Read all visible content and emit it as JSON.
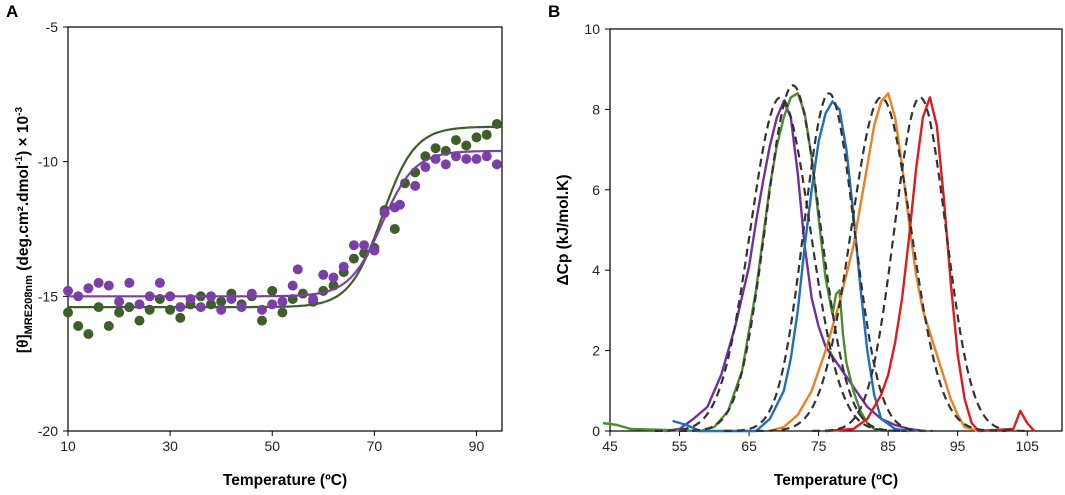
{
  "panels": {
    "a": "A",
    "b": "B"
  },
  "chart_data": [
    {
      "type": "scatter",
      "panel": "A",
      "xlabel": "Temperature (ºC)",
      "ylabel_main": "[θ]",
      "ylabel_sub": "MRE208nm",
      "ylabel_units": " (deg.cm²",
      "ylabel_units_rest": ".dmol",
      "ylabel_exp1": "-1",
      "ylabel_units_end": ") × 10",
      "ylabel_exp2": "-3",
      "xlim": [
        10,
        95
      ],
      "ylim": [
        -20,
        -5
      ],
      "xticks": [
        "10",
        "30",
        "50",
        "70",
        "90"
      ],
      "xtick_values": [
        10,
        30,
        50,
        70,
        90
      ],
      "yticks": [
        "-5",
        "-10",
        "-15",
        "-20"
      ],
      "ytick_values": [
        -5,
        -10,
        -15,
        -20
      ],
      "colors": {
        "green": "#3e5e2b",
        "purple": "#7b3fa8"
      },
      "series": [
        {
          "name": "green",
          "color": "#3e5e2b",
          "points": [
            [
              10,
              -15.6
            ],
            [
              12,
              -16.1
            ],
            [
              14,
              -16.4
            ],
            [
              16,
              -15.4
            ],
            [
              18,
              -16.1
            ],
            [
              20,
              -15.6
            ],
            [
              22,
              -15.4
            ],
            [
              24,
              -15.9
            ],
            [
              26,
              -15.5
            ],
            [
              28,
              -15.1
            ],
            [
              30,
              -15.5
            ],
            [
              32,
              -15.8
            ],
            [
              34,
              -15.3
            ],
            [
              36,
              -15.0
            ],
            [
              38,
              -15.3
            ],
            [
              40,
              -15.2
            ],
            [
              42,
              -14.9
            ],
            [
              44,
              -15.3
            ],
            [
              46,
              -15.0
            ],
            [
              48,
              -15.9
            ],
            [
              50,
              -14.8
            ],
            [
              52,
              -15.6
            ],
            [
              54,
              -15.1
            ],
            [
              56,
              -14.9
            ],
            [
              58,
              -15.2
            ],
            [
              60,
              -14.8
            ],
            [
              62,
              -14.6
            ],
            [
              64,
              -14.1
            ],
            [
              66,
              -13.6
            ],
            [
              68,
              -13.4
            ],
            [
              70,
              -13.2
            ],
            [
              72,
              -11.8
            ],
            [
              74,
              -12.5
            ],
            [
              76,
              -10.8
            ],
            [
              78,
              -10.4
            ],
            [
              80,
              -9.8
            ],
            [
              82,
              -9.5
            ],
            [
              84,
              -9.6
            ],
            [
              86,
              -9.2
            ],
            [
              88,
              -9.4
            ],
            [
              90,
              -9.1
            ],
            [
              92,
              -9.0
            ],
            [
              94,
              -8.6
            ]
          ],
          "fit": {
            "lower": -15.4,
            "upper": -8.7,
            "tm": 71.5,
            "width": 3.2
          }
        },
        {
          "name": "purple",
          "color": "#7b3fa8",
          "points": [
            [
              10,
              -14.8
            ],
            [
              12,
              -15.0
            ],
            [
              14,
              -14.7
            ],
            [
              16,
              -14.5
            ],
            [
              18,
              -14.6
            ],
            [
              20,
              -15.2
            ],
            [
              22,
              -14.5
            ],
            [
              24,
              -15.3
            ],
            [
              26,
              -15.0
            ],
            [
              28,
              -14.5
            ],
            [
              30,
              -15.0
            ],
            [
              32,
              -15.4
            ],
            [
              34,
              -15.1
            ],
            [
              36,
              -15.4
            ],
            [
              38,
              -15.0
            ],
            [
              40,
              -15.5
            ],
            [
              42,
              -15.1
            ],
            [
              44,
              -15.4
            ],
            [
              46,
              -14.9
            ],
            [
              48,
              -15.5
            ],
            [
              50,
              -15.3
            ],
            [
              52,
              -15.2
            ],
            [
              54,
              -14.6
            ],
            [
              55,
              -14.0
            ],
            [
              58,
              -15.1
            ],
            [
              60,
              -14.2
            ],
            [
              62,
              -14.3
            ],
            [
              64,
              -13.9
            ],
            [
              66,
              -13.1
            ],
            [
              68,
              -13.1
            ],
            [
              70,
              -13.3
            ],
            [
              72,
              -11.9
            ],
            [
              74,
              -11.7
            ],
            [
              75,
              -11.6
            ],
            [
              78,
              -10.9
            ],
            [
              80,
              -10.2
            ],
            [
              82,
              -9.9
            ],
            [
              84,
              -10.1
            ],
            [
              86,
              -9.8
            ],
            [
              88,
              -9.9
            ],
            [
              90,
              -9.9
            ],
            [
              92,
              -9.8
            ],
            [
              94,
              -10.1
            ]
          ],
          "fit": {
            "lower": -15.0,
            "upper": -9.6,
            "tm": 71.5,
            "width": 3.2
          }
        }
      ]
    },
    {
      "type": "line",
      "panel": "B",
      "xlabel": "Temperature (ºC)",
      "ylabel": "ΔCp (kJ/mol.K)",
      "xlim": [
        45,
        110
      ],
      "ylim": [
        0,
        10
      ],
      "xticks": [
        "45",
        "55",
        "65",
        "75",
        "85",
        "95",
        "105"
      ],
      "xtick_values": [
        45,
        55,
        65,
        75,
        85,
        95,
        105
      ],
      "yticks": [
        "0",
        "2",
        "4",
        "6",
        "8",
        "10"
      ],
      "ytick_values": [
        0,
        2,
        4,
        6,
        8,
        10
      ],
      "series": [
        {
          "name": "purple",
          "color": "#7030a0",
          "points": [
            [
              53,
              0.0
            ],
            [
              55,
              0.05
            ],
            [
              57,
              0.3
            ],
            [
              59,
              0.6
            ],
            [
              61,
              1.4
            ],
            [
              63,
              2.6
            ],
            [
              65,
              4.1
            ],
            [
              66,
              5.2
            ],
            [
              67,
              6.2
            ],
            [
              68,
              7.1
            ],
            [
              69,
              7.8
            ],
            [
              70,
              8.2
            ],
            [
              71,
              7.8
            ],
            [
              72,
              6.4
            ],
            [
              73,
              4.6
            ],
            [
              74,
              3.3
            ],
            [
              75,
              2.6
            ],
            [
              76,
              2.1
            ],
            [
              78,
              1.6
            ],
            [
              80,
              1.1
            ],
            [
              82,
              0.6
            ],
            [
              84,
              0.3
            ],
            [
              86,
              0.15
            ],
            [
              88,
              0.05
            ],
            [
              90,
              0.0
            ]
          ]
        },
        {
          "name": "green",
          "color": "#4d8c2f",
          "points": [
            [
              44,
              0.2
            ],
            [
              46,
              0.15
            ],
            [
              48,
              0.05
            ],
            [
              58,
              0.0
            ],
            [
              60,
              0.1
            ],
            [
              62,
              0.5
            ],
            [
              64,
              1.5
            ],
            [
              66,
              3.5
            ],
            [
              67,
              4.8
            ],
            [
              68,
              6.1
            ],
            [
              69,
              7.1
            ],
            [
              70,
              7.8
            ],
            [
              71,
              8.3
            ],
            [
              72,
              8.4
            ],
            [
              73,
              7.9
            ],
            [
              74,
              6.8
            ],
            [
              75,
              5.3
            ],
            [
              76,
              3.8
            ],
            [
              77,
              2.9
            ],
            [
              77.5,
              3.4
            ],
            [
              78,
              3.5
            ],
            [
              78.5,
              2.4
            ],
            [
              79,
              1.7
            ],
            [
              80,
              1.0
            ],
            [
              81,
              0.5
            ],
            [
              82,
              0.2
            ],
            [
              83,
              0.05
            ],
            [
              84,
              0.0
            ]
          ]
        },
        {
          "name": "blue",
          "color": "#1f6fbf",
          "points": [
            [
              54,
              0.25
            ],
            [
              56,
              0.15
            ],
            [
              58,
              0.0
            ],
            [
              66,
              0.0
            ],
            [
              68,
              0.3
            ],
            [
              70,
              1.0
            ],
            [
              71,
              1.8
            ],
            [
              72,
              3.0
            ],
            [
              73,
              4.6
            ],
            [
              74,
              6.0
            ],
            [
              75,
              7.2
            ],
            [
              76,
              7.9
            ],
            [
              77,
              8.2
            ],
            [
              78,
              8.0
            ],
            [
              79,
              7.0
            ],
            [
              80,
              5.4
            ],
            [
              81,
              3.6
            ],
            [
              82,
              2.0
            ],
            [
              83,
              0.9
            ],
            [
              84,
              0.3
            ],
            [
              86,
              0.05
            ],
            [
              88,
              0.0
            ]
          ]
        },
        {
          "name": "orange",
          "color": "#f07f22",
          "points": [
            [
              68,
              0.0
            ],
            [
              70,
              0.1
            ],
            [
              72,
              0.4
            ],
            [
              74,
              1.0
            ],
            [
              76,
              2.0
            ],
            [
              78,
              3.2
            ],
            [
              80,
              4.6
            ],
            [
              81,
              5.6
            ],
            [
              82,
              6.6
            ],
            [
              83,
              7.6
            ],
            [
              84,
              8.2
            ],
            [
              85,
              8.4
            ],
            [
              86,
              7.8
            ],
            [
              87,
              6.6
            ],
            [
              88,
              5.2
            ],
            [
              89,
              3.9
            ],
            [
              90,
              3.0
            ],
            [
              92,
              1.9
            ],
            [
              94,
              0.8
            ],
            [
              95,
              0.4
            ],
            [
              96,
              0.1
            ],
            [
              98,
              0.0
            ]
          ]
        },
        {
          "name": "red",
          "color": "#e01b1b",
          "points": [
            [
              76,
              0.0
            ],
            [
              80,
              0.05
            ],
            [
              82,
              0.3
            ],
            [
              84,
              0.9
            ],
            [
              85,
              1.4
            ],
            [
              86,
              2.2
            ],
            [
              87,
              3.3
            ],
            [
              88,
              4.8
            ],
            [
              89,
              6.5
            ],
            [
              90,
              7.8
            ],
            [
              91,
              8.3
            ],
            [
              92,
              7.6
            ],
            [
              93,
              5.8
            ],
            [
              94,
              3.7
            ],
            [
              95,
              1.9
            ],
            [
              96,
              0.8
            ],
            [
              97,
              0.2
            ],
            [
              98,
              0.0
            ],
            [
              103,
              0.05
            ],
            [
              104,
              0.5
            ],
            [
              105,
              0.2
            ],
            [
              106,
              0.0
            ]
          ]
        },
        {
          "name": "fit-purple",
          "color": "#333333",
          "dashed": true,
          "gauss": {
            "center": 69.5,
            "peak": 8.3,
            "sigma": 4.3
          }
        },
        {
          "name": "fit-green",
          "color": "#333333",
          "dashed": true,
          "gauss": {
            "center": 71.3,
            "peak": 8.6,
            "sigma": 3.9
          }
        },
        {
          "name": "fit-blue",
          "color": "#333333",
          "dashed": true,
          "gauss": {
            "center": 76.5,
            "peak": 8.4,
            "sigma": 3.6
          }
        },
        {
          "name": "fit-orange",
          "color": "#333333",
          "dashed": true,
          "gauss": {
            "center": 84.0,
            "peak": 8.3,
            "sigma": 4.3
          }
        },
        {
          "name": "fit-red",
          "color": "#333333",
          "dashed": true,
          "gauss": {
            "center": 89.6,
            "peak": 8.3,
            "sigma": 3.7
          }
        }
      ]
    }
  ]
}
